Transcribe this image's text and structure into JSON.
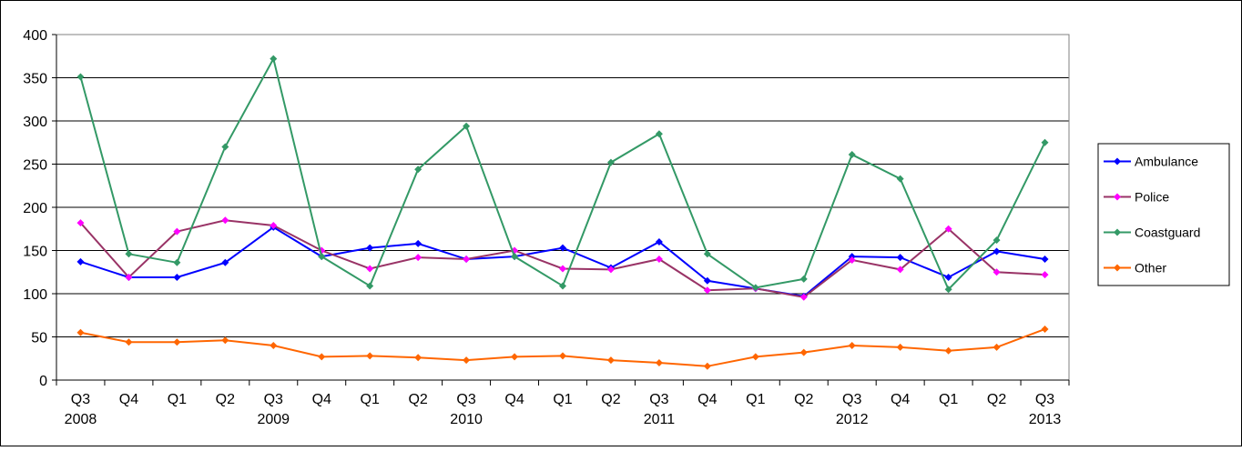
{
  "chart_data": {
    "type": "line",
    "categories": [
      "Q3 2008",
      "Q4",
      "Q1",
      "Q2",
      "Q3 2009",
      "Q4",
      "Q1",
      "Q2",
      "Q3 2010",
      "Q4",
      "Q1",
      "Q2",
      "Q3 2011",
      "Q4",
      "Q1",
      "Q2",
      "Q3 2012",
      "Q4",
      "Q1",
      "Q2",
      "Q3 2013"
    ],
    "series": [
      {
        "name": "Ambulance",
        "color": "#0000ff",
        "marker_color": "#0000ff",
        "values": [
          137,
          119,
          119,
          136,
          177,
          143,
          153,
          158,
          140,
          143,
          153,
          130,
          160,
          115,
          106,
          97,
          143,
          142,
          119,
          149,
          140
        ]
      },
      {
        "name": "Police",
        "color": "#993366",
        "marker_color": "#ff00ff",
        "values": [
          182,
          119,
          172,
          185,
          179,
          150,
          129,
          142,
          140,
          150,
          129,
          128,
          140,
          104,
          106,
          96,
          139,
          128,
          175,
          125,
          122
        ]
      },
      {
        "name": "Coastguard",
        "color": "#339966",
        "marker_color": "#339966",
        "values": [
          351,
          146,
          136,
          270,
          372,
          143,
          109,
          244,
          294,
          143,
          109,
          252,
          285,
          146,
          107,
          117,
          261,
          233,
          105,
          162,
          275
        ]
      },
      {
        "name": "Other",
        "color": "#ff6600",
        "marker_color": "#ff6600",
        "values": [
          55,
          44,
          44,
          46,
          40,
          27,
          28,
          26,
          23,
          27,
          28,
          23,
          20,
          16,
          27,
          32,
          40,
          38,
          34,
          38,
          59
        ]
      }
    ],
    "ylim": [
      0,
      400
    ],
    "yticks": [
      0,
      50,
      100,
      150,
      200,
      250,
      300,
      350,
      400
    ],
    "grid": true,
    "legend": "right"
  }
}
